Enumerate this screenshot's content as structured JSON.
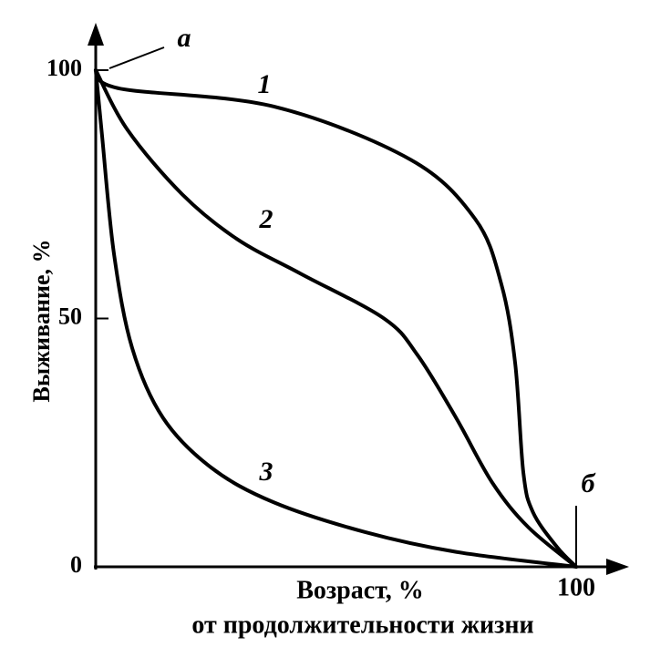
{
  "chart_data": {
    "type": "line",
    "ylabel": "Выживание, %",
    "xlabel": [
      "Возраст, %",
      "от продолжительности жизни"
    ],
    "xlim": [
      0,
      100
    ],
    "ylim": [
      0,
      100
    ],
    "xticks": [
      100
    ],
    "yticks": [
      0,
      50,
      100
    ],
    "annotations": [
      "а",
      "б"
    ],
    "series": [
      {
        "name": "1",
        "color": "#000000",
        "x": [
          0,
          5,
          37,
          65.5,
          79,
          84.4,
          87.3,
          89,
          91,
          96,
          100
        ],
        "values": [
          100,
          96.3,
          92.7,
          82,
          70,
          57,
          41,
          19,
          11,
          4,
          0
        ]
      },
      {
        "name": "2",
        "color": "#000000",
        "x": [
          0,
          6.6,
          18,
          29.4,
          42.7,
          60,
          67,
          75,
          82.5,
          90,
          100
        ],
        "values": [
          100,
          88,
          75,
          66,
          59,
          50,
          42.6,
          30,
          17,
          8,
          0
        ]
      },
      {
        "name": "3",
        "color": "#000000",
        "x": [
          0,
          1.3,
          3.8,
          7.6,
          14,
          24,
          37,
          56,
          75,
          100
        ],
        "values": [
          100,
          87,
          63,
          44,
          30,
          20,
          13,
          7,
          3,
          0
        ]
      }
    ]
  }
}
